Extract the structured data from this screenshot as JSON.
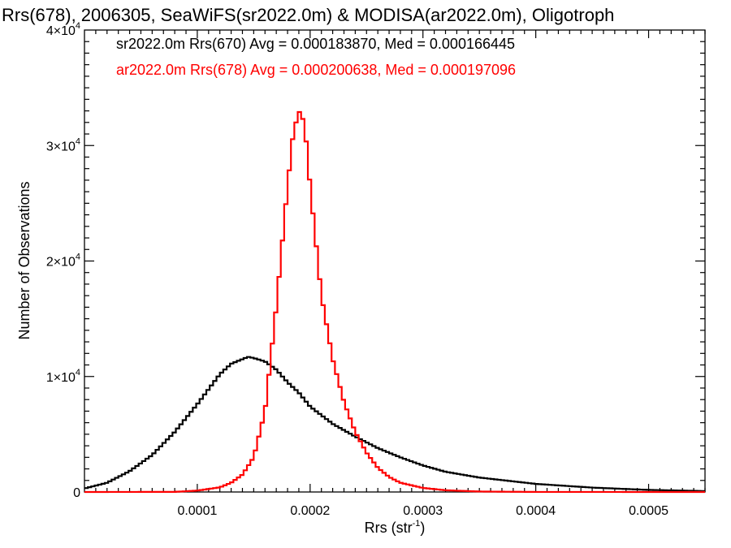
{
  "chart_data": {
    "type": "line",
    "title": "Rrs(678), 2006305, SeaWiFS(sr2022.0m) & MODISA(ar2022.0m), Oligotroph",
    "xlabel": "Rrs (str",
    "xlabel_sup": "-1",
    "xlabel_end": ")",
    "ylabel": "Number of Observations",
    "xlim": [
      0.0,
      0.00055
    ],
    "ylim": [
      0,
      40000
    ],
    "x_ticks": [
      {
        "value": 0.0001,
        "label": "0.0001"
      },
      {
        "value": 0.0002,
        "label": "0.0002"
      },
      {
        "value": 0.0003,
        "label": "0.0003"
      },
      {
        "value": 0.0004,
        "label": "0.0004"
      },
      {
        "value": 0.0005,
        "label": "0.0005"
      }
    ],
    "y_ticks": [
      {
        "value": 0,
        "mant": "0",
        "exp": ""
      },
      {
        "value": 10000,
        "mant": "1×10",
        "exp": "4"
      },
      {
        "value": 20000,
        "mant": "2×10",
        "exp": "4"
      },
      {
        "value": 30000,
        "mant": "3×10",
        "exp": "4"
      },
      {
        "value": 40000,
        "mant": "4×10",
        "exp": "4"
      }
    ],
    "annotations": [
      {
        "text": "sr2022.0m Rrs(670) Avg = 0.000183870, Med = 0.000166445",
        "color": "#000000"
      },
      {
        "text": "ar2022.0m Rrs(678) Avg = 0.000200638, Med = 0.000197096",
        "color": "#ff0000"
      }
    ],
    "series": [
      {
        "color": "#000000",
        "x": [
          0.0,
          2e-05,
          4e-05,
          6e-05,
          8e-05,
          0.0001,
          0.00011,
          0.00012,
          0.00013,
          0.00014,
          0.000145,
          0.00015,
          0.00016,
          0.00017,
          0.00018,
          0.00019,
          0.0002,
          0.00022,
          0.00024,
          0.00026,
          0.00028,
          0.0003,
          0.00032,
          0.00035,
          0.0004,
          0.00045,
          0.0005,
          0.00055
        ],
        "y": [
          300,
          800,
          1800,
          3200,
          5200,
          7600,
          8900,
          10200,
          11100,
          11500,
          11700,
          11600,
          11300,
          10600,
          9500,
          8600,
          7400,
          5900,
          4800,
          3800,
          3000,
          2300,
          1750,
          1250,
          700,
          380,
          180,
          80
        ]
      },
      {
        "color": "#ff0000",
        "x": [
          0.0,
          8e-05,
          0.0001,
          0.00012,
          0.00013,
          0.00014,
          0.00015,
          0.00016,
          0.00017,
          0.00018,
          0.000185,
          0.00019,
          0.000195,
          0.0002,
          0.00021,
          0.00022,
          0.00023,
          0.00024,
          0.00025,
          0.00026,
          0.00027,
          0.00028,
          0.0003,
          0.00032,
          0.00035,
          0.0004,
          0.00055
        ],
        "y": [
          0,
          10,
          120,
          400,
          800,
          1500,
          3000,
          7000,
          16000,
          26500,
          31000,
          33000,
          32000,
          26500,
          17000,
          11500,
          7800,
          5200,
          3400,
          2100,
          1300,
          800,
          350,
          150,
          40,
          5,
          0
        ]
      }
    ]
  }
}
